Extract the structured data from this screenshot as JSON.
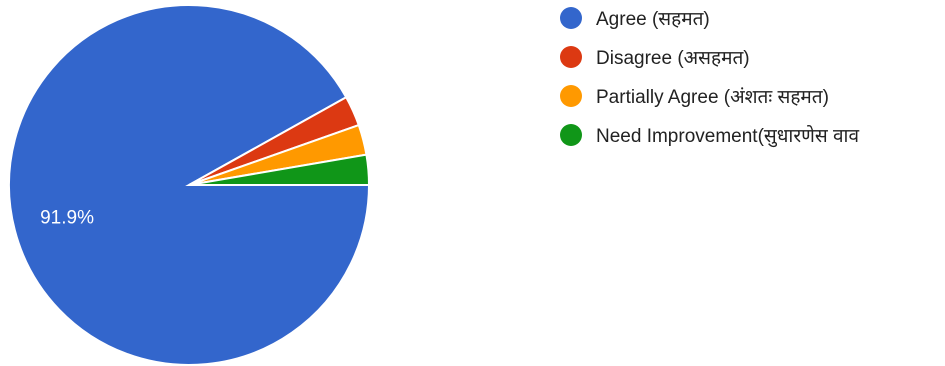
{
  "chart_data": {
    "type": "pie",
    "title": "",
    "legend_position": "right",
    "slices": [
      {
        "label": "Agree (सहमत)",
        "value": 91.9,
        "color": "#3366cc",
        "show_label": true,
        "display_value": "91.9%"
      },
      {
        "label": "Disagree (असहमत)",
        "value": 2.7,
        "color": "#dc3912",
        "show_label": false,
        "display_value": ""
      },
      {
        "label": "Partially Agree (अंशतः सहमत)",
        "value": 2.7,
        "color": "#ff9900",
        "show_label": false,
        "display_value": ""
      },
      {
        "label": "Need Improvement(सुधारणेस वाव",
        "value": 2.7,
        "color": "#109618",
        "show_label": false,
        "display_value": ""
      }
    ]
  }
}
